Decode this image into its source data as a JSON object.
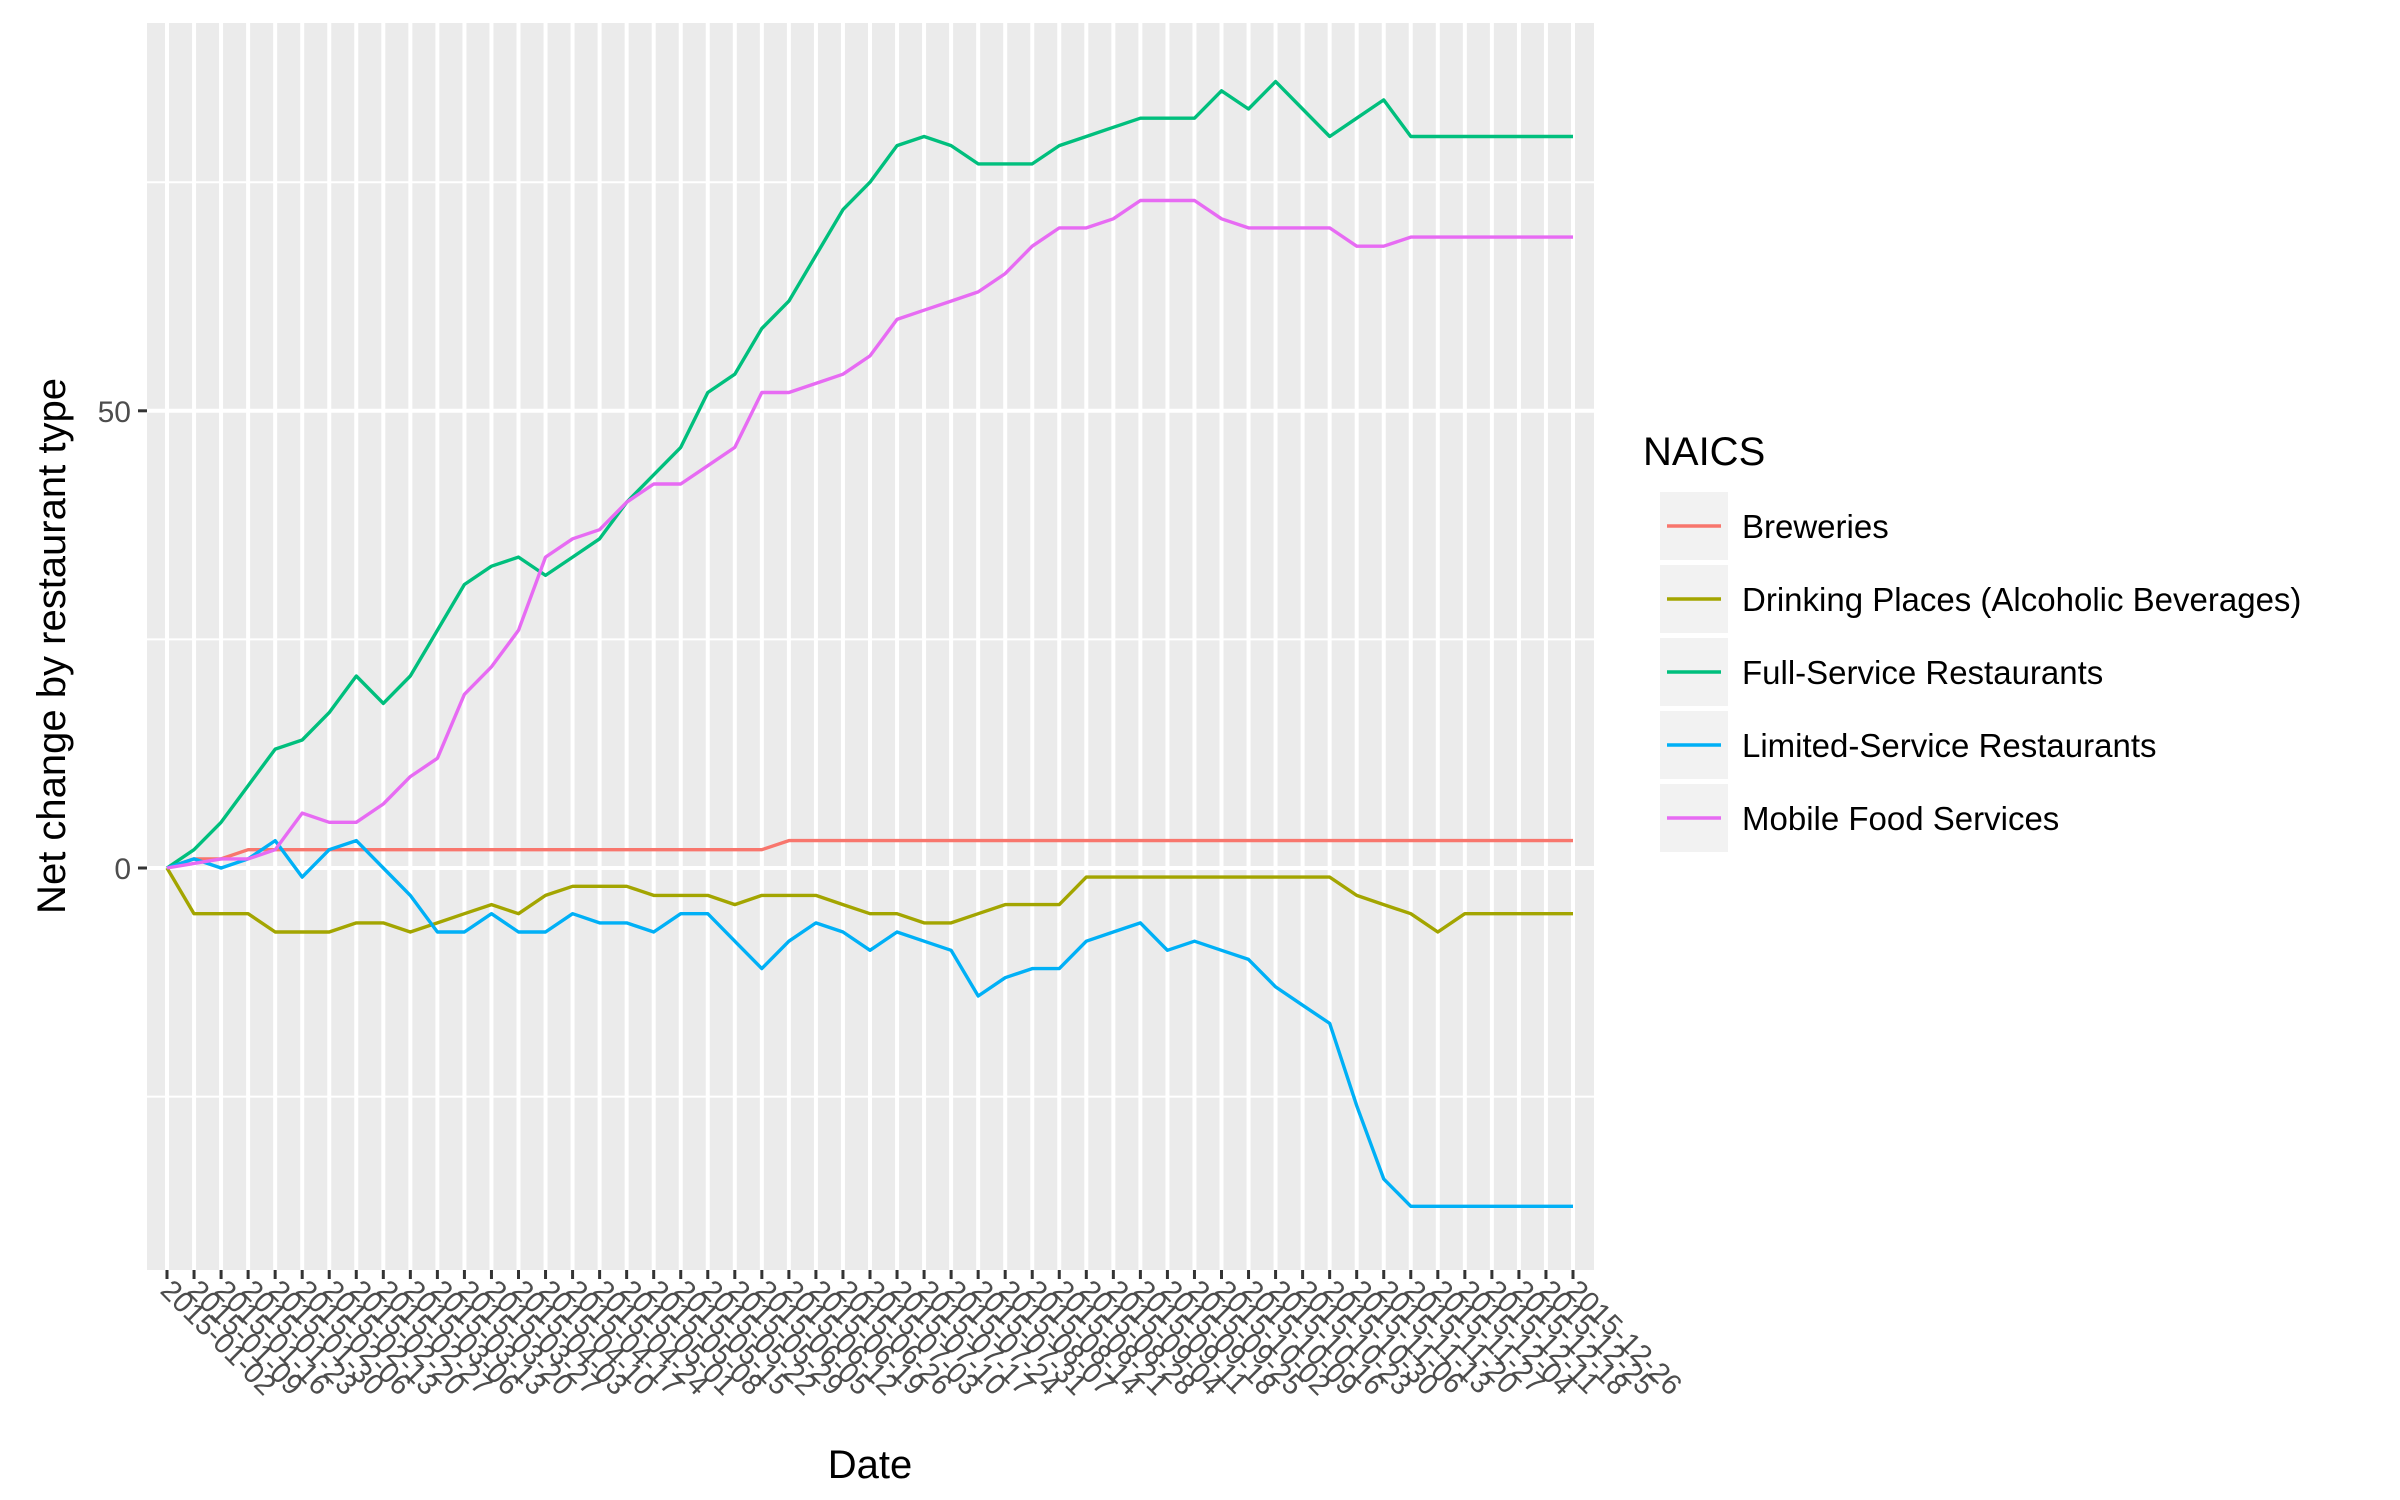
{
  "chart_data": {
    "type": "line",
    "title": "",
    "xlabel": "Date",
    "ylabel": "Net change by restaurant type",
    "ylim": [
      -43,
      92
    ],
    "yticks": [
      0,
      50
    ],
    "grid": true,
    "legend": {
      "title": "NAICS",
      "position": "right"
    },
    "x": [
      "2015-01-02",
      "2015-01-09",
      "2015-01-16",
      "2015-01-23",
      "2015-01-30",
      "2015-02-06",
      "2015-02-13",
      "2015-02-20",
      "2015-02-27",
      "2015-03-06",
      "2015-03-13",
      "2015-03-20",
      "2015-03-27",
      "2015-04-03",
      "2015-04-10",
      "2015-04-17",
      "2015-04-24",
      "2015-05-01",
      "2015-05-08",
      "2015-05-15",
      "2015-05-22",
      "2015-05-29",
      "2015-06-05",
      "2015-06-12",
      "2015-06-19",
      "2015-06-26",
      "2015-07-03",
      "2015-07-10",
      "2015-07-17",
      "2015-07-24",
      "2015-07-31",
      "2015-08-07",
      "2015-08-14",
      "2015-08-21",
      "2015-08-28",
      "2015-09-04",
      "2015-09-11",
      "2015-09-18",
      "2015-09-25",
      "2015-10-02",
      "2015-10-09",
      "2015-10-16",
      "2015-10-23",
      "2015-10-30",
      "2015-11-06",
      "2015-11-13",
      "2015-11-20",
      "2015-11-27",
      "2015-12-04",
      "2015-12-11",
      "2015-12-18",
      "2015-12-25",
      "2015-12-26"
    ],
    "series": [
      {
        "name": "Breweries",
        "color": "#F8766D",
        "values": [
          0,
          1,
          1,
          2,
          2,
          2,
          2,
          2,
          2,
          2,
          2,
          2,
          2,
          2,
          2,
          2,
          2,
          2,
          2,
          2,
          2,
          2,
          2,
          3,
          3,
          3,
          3,
          3,
          3,
          3,
          3,
          3,
          3,
          3,
          3,
          3,
          3,
          3,
          3,
          3,
          3,
          3,
          3,
          3,
          3,
          3,
          3,
          3,
          3,
          3,
          3,
          3,
          3
        ]
      },
      {
        "name": "Drinking Places (Alcoholic Beverages)",
        "color": "#A3A500",
        "values": [
          0,
          -5,
          -5,
          -5,
          -7,
          -7,
          -7,
          -6,
          -6,
          -7,
          -6,
          -5,
          -4,
          -5,
          -3,
          -2,
          -2,
          -2,
          -3,
          -3,
          -3,
          -4,
          -3,
          -3,
          -3,
          -4,
          -5,
          -5,
          -6,
          -6,
          -5,
          -4,
          -4,
          -4,
          -1,
          -1,
          -1,
          -1,
          -1,
          -1,
          -1,
          -1,
          -1,
          -1,
          -3,
          -4,
          -5,
          -7,
          -5,
          -5,
          -5,
          -5,
          -5
        ]
      },
      {
        "name": "Full-Service Restaurants",
        "color": "#00BF7D",
        "values": [
          0,
          2,
          5,
          9,
          13,
          14,
          17,
          21,
          18,
          21,
          26,
          31,
          33,
          34,
          32,
          34,
          36,
          40,
          43,
          46,
          52,
          54,
          59,
          62,
          67,
          72,
          75,
          79,
          80,
          79,
          77,
          77,
          77,
          79,
          80,
          81,
          82,
          82,
          82,
          85,
          83,
          86,
          83,
          80,
          82,
          84,
          80,
          80,
          80,
          80,
          80,
          80,
          80
        ]
      },
      {
        "name": "Limited-Service Restaurants",
        "color": "#00B0F6",
        "values": [
          0,
          1,
          0,
          1,
          3,
          -1,
          2,
          3,
          0,
          -3,
          -7,
          -7,
          -5,
          -7,
          -7,
          -5,
          -6,
          -6,
          -7,
          -5,
          -5,
          -8,
          -11,
          -8,
          -6,
          -7,
          -9,
          -7,
          -8,
          -9,
          -14,
          -12,
          -11,
          -11,
          -8,
          -7,
          -6,
          -9,
          -8,
          -9,
          -10,
          -13,
          -15,
          -17,
          -26,
          -34,
          -37,
          -37,
          -37,
          -37,
          -37,
          -37,
          -37
        ]
      },
      {
        "name": "Mobile Food Services",
        "color": "#E76BF3",
        "values": [
          0,
          0.5,
          1,
          1,
          2,
          6,
          5,
          5,
          7,
          10,
          12,
          19,
          22,
          26,
          34,
          36,
          37,
          40,
          42,
          42,
          44,
          46,
          52,
          52,
          53,
          54,
          56,
          60,
          61,
          62,
          63,
          65,
          68,
          70,
          70,
          71,
          73,
          73,
          73,
          71,
          70,
          70,
          70,
          70,
          68,
          68,
          69,
          69,
          69,
          69,
          69,
          69,
          69
        ]
      }
    ]
  }
}
